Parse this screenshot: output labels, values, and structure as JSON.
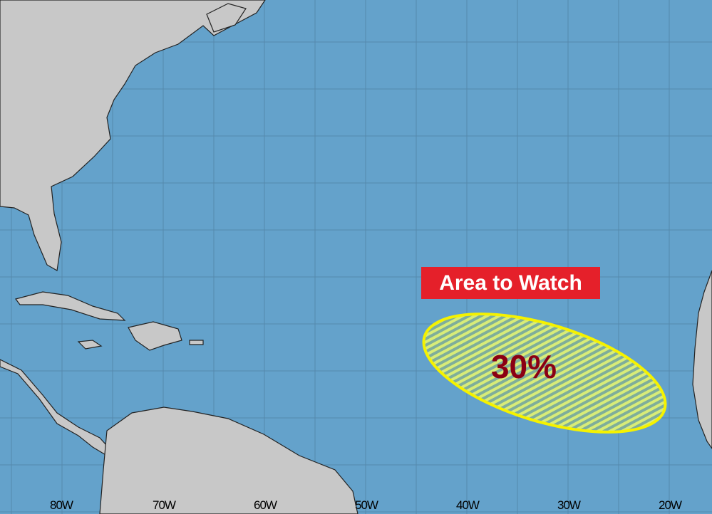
{
  "map": {
    "label": "Area to Watch",
    "probability": "30%",
    "colors": {
      "ocean": "#64a2cb",
      "land": "#c8c8c8",
      "label_bg": "#e5202a",
      "outline": "#f5f200",
      "probability_text": "#8b0013"
    },
    "longitude_labels": [
      "80W",
      "70W",
      "60W",
      "50W",
      "40W",
      "30W",
      "20W"
    ]
  }
}
